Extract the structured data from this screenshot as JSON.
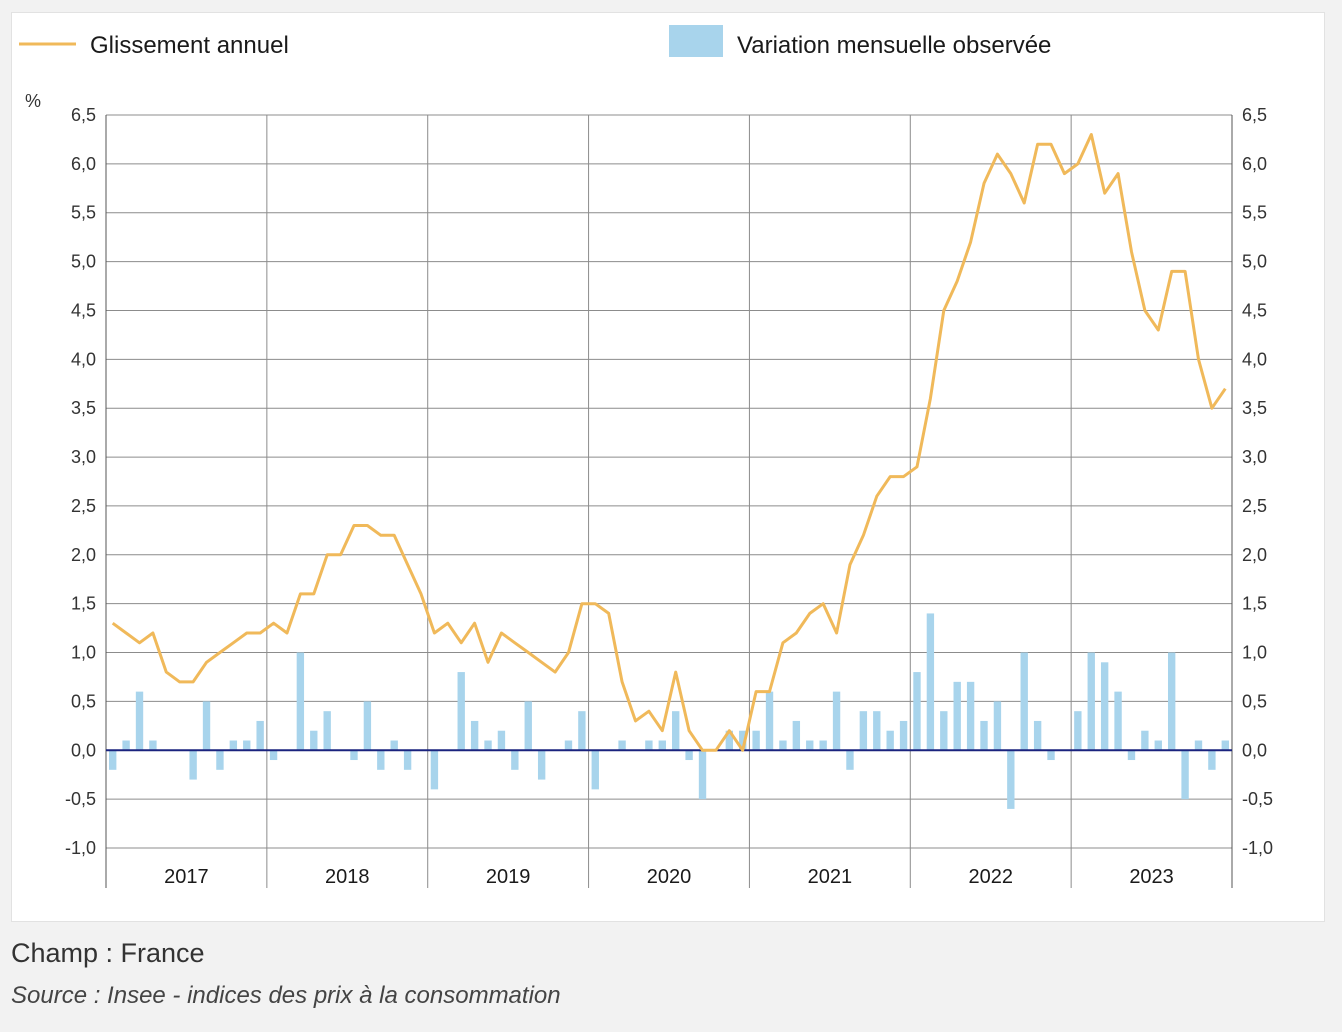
{
  "footer": {
    "scope": "Champ : France",
    "source": "Source : Insee - indices des prix à la consommation"
  },
  "colors": {
    "line": "#f0b95a",
    "bar": "#a8d4ec",
    "zero_line": "#1a237e",
    "grid": "#8c8c8c"
  },
  "chart_data": {
    "type": "bar+line",
    "unit_label": "%",
    "y_range": [
      -1.0,
      6.5
    ],
    "y_ticks": [
      "6,5",
      "6,0",
      "5,5",
      "5,0",
      "4,5",
      "4,0",
      "3,5",
      "3,0",
      "2,5",
      "2,0",
      "1,5",
      "1,0",
      "0,5",
      "0,0",
      "-0,5",
      "-1,0"
    ],
    "years": [
      "2017",
      "2018",
      "2019",
      "2020",
      "2021",
      "2022",
      "2023"
    ],
    "legend": {
      "line_label": "Glissement annuel",
      "bar_label": "Variation mensuelle observée"
    },
    "series": [
      {
        "name": "Glissement annuel",
        "type": "line",
        "values": [
          1.3,
          1.2,
          1.1,
          1.2,
          0.8,
          0.7,
          0.7,
          0.9,
          1.0,
          1.1,
          1.2,
          1.2,
          1.3,
          1.2,
          1.6,
          1.6,
          2.0,
          2.0,
          2.3,
          2.3,
          2.2,
          2.2,
          1.9,
          1.6,
          1.2,
          1.3,
          1.1,
          1.3,
          0.9,
          1.2,
          1.1,
          1.0,
          0.9,
          0.8,
          1.0,
          1.5,
          1.5,
          1.4,
          0.7,
          0.3,
          0.4,
          0.2,
          0.8,
          0.2,
          0.0,
          0.0,
          0.2,
          0.0,
          0.6,
          0.6,
          1.1,
          1.2,
          1.4,
          1.5,
          1.2,
          1.9,
          2.2,
          2.6,
          2.8,
          2.8,
          2.9,
          3.6,
          4.5,
          4.8,
          5.2,
          5.8,
          6.1,
          5.9,
          5.6,
          6.2,
          6.2,
          5.9,
          6.0,
          6.3,
          5.7,
          5.9,
          5.1,
          4.5,
          4.3,
          4.9,
          4.9,
          4.0,
          3.5,
          3.7
        ]
      },
      {
        "name": "Variation mensuelle observée",
        "type": "bar",
        "values": [
          -0.2,
          0.1,
          0.6,
          0.1,
          0.0,
          0.0,
          -0.3,
          0.5,
          -0.2,
          0.1,
          0.1,
          0.3,
          -0.1,
          0.0,
          1.0,
          0.2,
          0.4,
          0.0,
          -0.1,
          0.5,
          -0.2,
          0.1,
          -0.2,
          0.0,
          -0.4,
          0.0,
          0.8,
          0.3,
          0.1,
          0.2,
          -0.2,
          0.5,
          -0.3,
          0.0,
          0.1,
          0.4,
          -0.4,
          0.0,
          0.1,
          0.0,
          0.1,
          0.1,
          0.4,
          -0.1,
          -0.5,
          0.0,
          0.2,
          0.2,
          0.2,
          0.6,
          0.1,
          0.3,
          0.1,
          0.1,
          0.6,
          -0.2,
          0.4,
          0.4,
          0.2,
          0.3,
          0.8,
          1.4,
          0.4,
          0.7,
          0.7,
          0.3,
          0.5,
          -0.6,
          1.0,
          0.3,
          -0.1,
          0.0,
          0.4,
          1.0,
          0.9,
          0.6,
          -0.1,
          0.2,
          0.1,
          1.0,
          -0.5,
          0.1,
          -0.2,
          0.1
        ]
      }
    ]
  }
}
